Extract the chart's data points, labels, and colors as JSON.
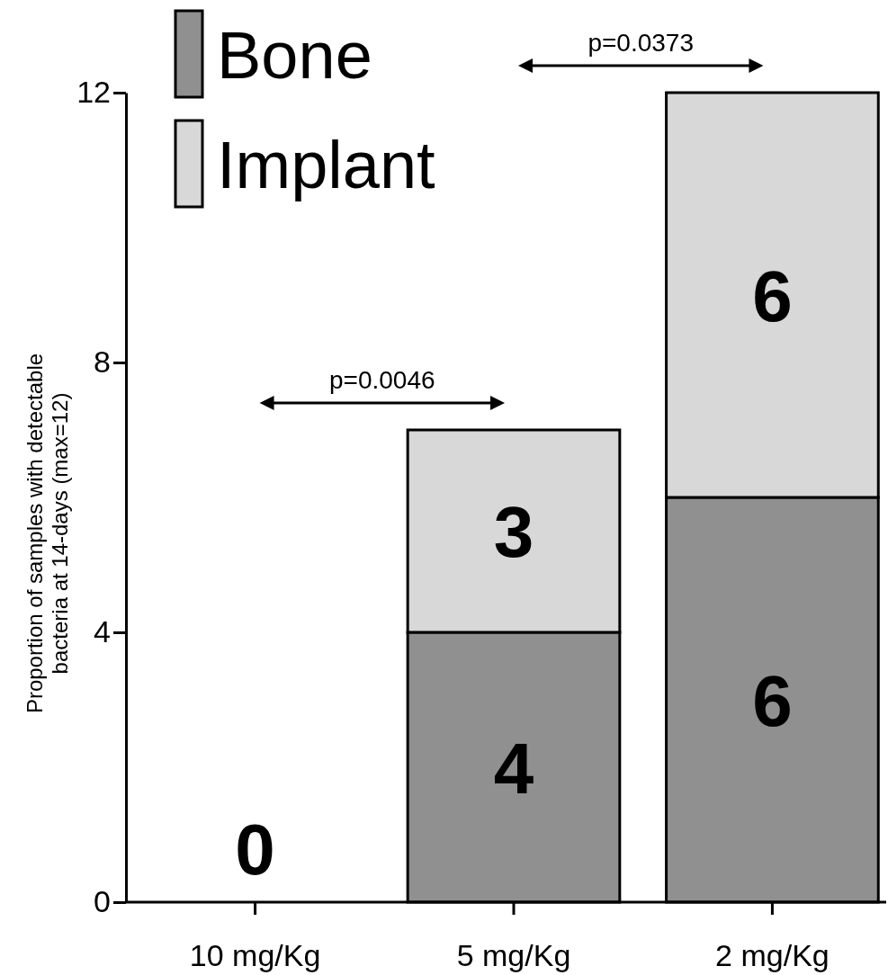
{
  "chart_data": {
    "type": "bar",
    "stacked": true,
    "categories": [
      "10 mg/Kg",
      "5 mg/Kg",
      "2 mg/Kg"
    ],
    "series": [
      {
        "name": "Bone",
        "color": "#909090",
        "values": [
          0,
          4,
          6
        ],
        "value_labels": [
          "0",
          "4",
          "6"
        ]
      },
      {
        "name": "Implant",
        "color": "#d8d8d8",
        "values": [
          0,
          3,
          6
        ],
        "value_labels": [
          null,
          "3",
          "6"
        ]
      }
    ],
    "ylabel": "Proportion of samples with detectable\nbacteria at 14-days (max=12)",
    "ylim": [
      0,
      12
    ],
    "yticks": [
      0,
      4,
      8,
      12
    ],
    "grid": false,
    "legend": "top left",
    "annotations": [
      "p=0.0046",
      "p=0.0373"
    ]
  }
}
